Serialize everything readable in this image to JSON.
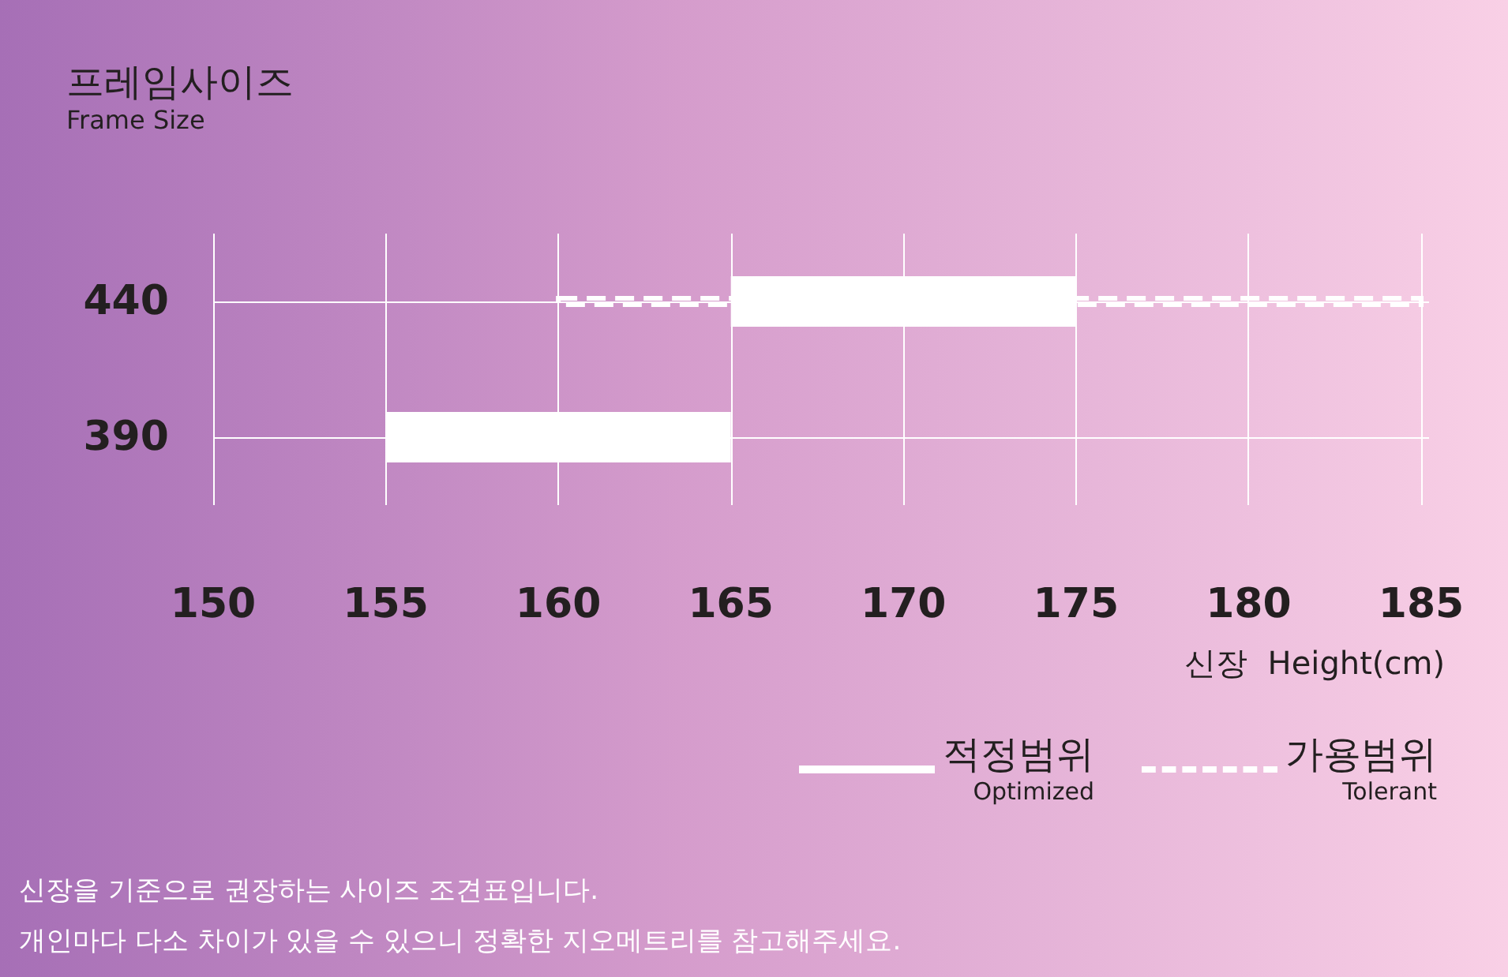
{
  "chart_data": {
    "type": "bar",
    "orientation": "horizontal",
    "ylabel": "프레임사이즈\nFrame Size",
    "xlabel": "신장  Height(cm)",
    "categories": [
      "440",
      "390"
    ],
    "series": [
      {
        "name": "적정범위\nOptimized",
        "color": "#ffffff",
        "line_style": "solid",
        "base": [
          165,
          155
        ],
        "values": [
          10,
          10
        ]
      },
      {
        "name": "가용범위\nTolerant",
        "color": "#ffffff",
        "line_style": "dashed",
        "base": [
          160,
          null
        ],
        "values": [
          25,
          null
        ]
      }
    ],
    "xlim": [
      150,
      185
    ],
    "xticks": [
      150,
      155,
      160,
      165,
      170,
      175,
      180,
      185
    ],
    "grid": true,
    "legend": "bottom right",
    "annotations": [
      "신장을 기준으로 권장하는 사이즈 조견표입니다.",
      "개인마다 다소 차이가 있을 수 있으니 정확한 지오메트리를 참고해주세요."
    ]
  }
}
